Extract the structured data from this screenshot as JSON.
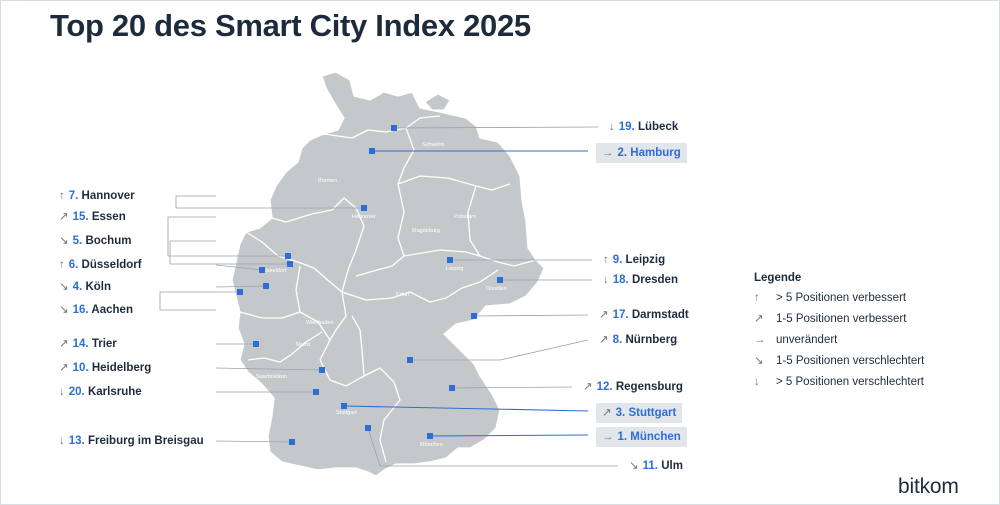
{
  "title": "Top 20 des Smart City Index 2025",
  "colors": {
    "accent": "#2c6ed5",
    "map_fill": "#c5c8cb",
    "text": "#1d2c3c",
    "highlight_bg": "#e2e6ea"
  },
  "map_background_labels": [
    "Schwerin",
    "Bremen",
    "Hannover",
    "Magdeburg",
    "Potsdam",
    "Leipzig",
    "Dresden",
    "Erfurt",
    "Wiesbaden",
    "Mainz",
    "Saarbrücken",
    "Stuttgart",
    "München",
    "Düsseldorf"
  ],
  "legend": {
    "title": "Legende",
    "items": [
      {
        "arrow": "↑",
        "text": "> 5 Positionen verbessert"
      },
      {
        "arrow": "↗",
        "text": "1-5 Positionen verbessert"
      },
      {
        "arrow": "→",
        "text": "unverändert"
      },
      {
        "arrow": "↘",
        "text": "1-5 Positionen verschlechtert"
      },
      {
        "arrow": "↓",
        "text": "> 5 Positionen verschlechtert"
      }
    ]
  },
  "cities": [
    {
      "rank": "19.",
      "name": "Lübeck",
      "arrow": "↓",
      "highlight": false
    },
    {
      "rank": "2.",
      "name": "Hamburg",
      "arrow": "→",
      "highlight": true
    },
    {
      "rank": "7.",
      "name": "Hannover",
      "arrow": "↑",
      "highlight": false
    },
    {
      "rank": "15.",
      "name": "Essen",
      "arrow": "↗",
      "highlight": false
    },
    {
      "rank": "5.",
      "name": "Bochum",
      "arrow": "↘",
      "highlight": false
    },
    {
      "rank": "6.",
      "name": "Düsseldorf",
      "arrow": "↑",
      "highlight": false
    },
    {
      "rank": "4.",
      "name": "Köln",
      "arrow": "↘",
      "highlight": false
    },
    {
      "rank": "16.",
      "name": "Aachen",
      "arrow": "↘",
      "highlight": false
    },
    {
      "rank": "9.",
      "name": "Leipzig",
      "arrow": "↑",
      "highlight": false
    },
    {
      "rank": "18.",
      "name": "Dresden",
      "arrow": "↓",
      "highlight": false
    },
    {
      "rank": "17.",
      "name": "Darmstadt",
      "arrow": "↗",
      "highlight": false
    },
    {
      "rank": "14.",
      "name": "Trier",
      "arrow": "↗",
      "highlight": false
    },
    {
      "rank": "8.",
      "name": "Nürnberg",
      "arrow": "↗",
      "highlight": false
    },
    {
      "rank": "10.",
      "name": "Heidelberg",
      "arrow": "↗",
      "highlight": false
    },
    {
      "rank": "20.",
      "name": "Karlsruhe",
      "arrow": "↓",
      "highlight": false
    },
    {
      "rank": "12.",
      "name": "Regensburg",
      "arrow": "↗",
      "highlight": false
    },
    {
      "rank": "3.",
      "name": "Stuttgart",
      "arrow": "↗",
      "highlight": true
    },
    {
      "rank": "13.",
      "name": "Freiburg im Breisgau",
      "arrow": "↓",
      "highlight": false
    },
    {
      "rank": "1.",
      "name": "München",
      "arrow": "→",
      "highlight": true
    },
    {
      "rank": "11.",
      "name": "Ulm",
      "arrow": "↘",
      "highlight": false
    }
  ],
  "logo": "bitkom"
}
